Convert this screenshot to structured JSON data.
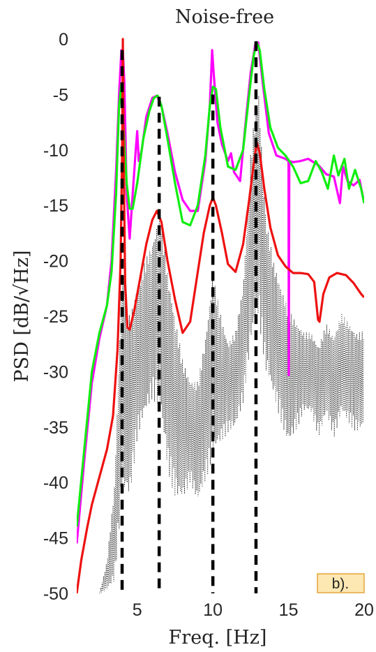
{
  "chart_data": {
    "type": "line",
    "title": "Noise-free",
    "xlabel": "Freq. [Hz]",
    "ylabel": "PSD [dB/√Hz]",
    "xlim": [
      1,
      20
    ],
    "ylim": [
      -50,
      0
    ],
    "xticks": [
      5,
      10,
      15,
      20
    ],
    "yticks": [
      0,
      -5,
      -10,
      -15,
      -20,
      -25,
      -30,
      -35,
      -40,
      -45,
      -50
    ],
    "grid": false,
    "annotation": "b).",
    "colors": {
      "magenta": "#ff00ff",
      "green": "#11ee11",
      "red": "#ee1111",
      "black": "#000000",
      "dotted": "#222222"
    },
    "series": [
      {
        "color": "magenta",
        "style": "solid",
        "x": [
          1.0,
          1.5,
          2.0,
          2.5,
          3.0,
          3.3,
          3.6,
          3.8,
          3.95,
          4.05,
          4.15,
          4.3,
          4.5,
          4.7,
          4.9,
          5.0,
          5.1,
          5.3,
          5.6,
          6.0,
          6.3,
          6.6,
          7.0,
          7.5,
          8.0,
          8.5,
          9.0,
          9.5,
          9.8,
          9.95,
          10.05,
          10.3,
          10.6,
          11.0,
          11.2,
          11.4,
          11.8,
          12.2,
          12.5,
          12.8,
          13.0,
          13.3,
          13.7,
          14.2,
          14.8,
          15.0,
          15.02,
          15.05,
          15.3,
          15.8,
          16.3,
          17.0,
          17.5,
          18.0,
          18.4,
          18.6,
          18.9,
          19.3,
          19.7,
          20.0
        ],
        "y": [
          -45.5,
          -38,
          -31,
          -27,
          -24,
          -20,
          -12,
          -5,
          -1,
          -1,
          -4,
          -14,
          -18,
          -14,
          -10,
          -8.3,
          -11,
          -10,
          -7,
          -5.3,
          -5.1,
          -6,
          -8.5,
          -12,
          -14.5,
          -15.5,
          -15.5,
          -11,
          -6,
          -1,
          -3,
          -7.5,
          -9.5,
          -11,
          -10.3,
          -12,
          -12.8,
          -7,
          -3,
          -0.5,
          -0.3,
          -4,
          -8.5,
          -10.5,
          -10.8,
          -11,
          -30.3,
          -11,
          -11.1,
          -11,
          -10.8,
          -11.4,
          -12.2,
          -12.4,
          -14.8,
          -11.5,
          -12.8,
          -13.2,
          -12.7,
          -14.8
        ]
      },
      {
        "color": "green",
        "style": "solid",
        "x": [
          1.0,
          1.5,
          2.0,
          2.5,
          3.0,
          3.3,
          3.6,
          3.8,
          3.95,
          4.1,
          4.3,
          4.5,
          4.7,
          5.0,
          5.4,
          5.8,
          6.1,
          6.35,
          6.6,
          7.0,
          7.5,
          8.0,
          8.5,
          9.0,
          9.5,
          9.8,
          10.0,
          10.2,
          10.5,
          11.0,
          11.5,
          12.0,
          12.4,
          12.7,
          12.9,
          13.1,
          13.4,
          13.8,
          14.3,
          14.8,
          15.3,
          15.8,
          16.3,
          16.8,
          17.2,
          17.6,
          18.0,
          18.3,
          18.7,
          19.0,
          19.4,
          19.8,
          20.0
        ],
        "y": [
          -44,
          -37,
          -30,
          -26.5,
          -24,
          -21,
          -14,
          -6,
          -4,
          -8,
          -13,
          -15.3,
          -15.3,
          -13,
          -9,
          -6.5,
          -5.3,
          -5.1,
          -6,
          -9,
          -13,
          -16.5,
          -16.8,
          -15,
          -10.5,
          -6,
          -4.3,
          -4.5,
          -8,
          -11.5,
          -11.8,
          -10,
          -5,
          -1.5,
          -0.3,
          -1,
          -4.5,
          -8,
          -9.8,
          -10.5,
          -11.5,
          -13,
          -12.8,
          -11,
          -12,
          -13.5,
          -10.5,
          -12.3,
          -10.8,
          -13.5,
          -11.8,
          -13.5,
          -14.8
        ]
      },
      {
        "color": "red",
        "style": "solid",
        "x": [
          1.0,
          1.3,
          1.7,
          2.0,
          2.5,
          3.0,
          3.4,
          3.7,
          3.9,
          4.0,
          4.05,
          4.1,
          4.2,
          4.35,
          4.5,
          4.8,
          5.2,
          5.6,
          6.0,
          6.3,
          6.6,
          7.0,
          7.5,
          8.0,
          8.5,
          9.0,
          9.4,
          9.8,
          10.0,
          10.2,
          10.6,
          11.0,
          11.5,
          12.0,
          12.4,
          12.7,
          12.9,
          13.1,
          13.4,
          13.8,
          14.3,
          14.8,
          15.3,
          15.8,
          16.3,
          16.7,
          16.95,
          17.05,
          17.3,
          17.7,
          18.2,
          18.8,
          19.3,
          19.8,
          20.0
        ],
        "y": [
          -50,
          -47,
          -44,
          -42,
          -39.5,
          -37,
          -34,
          -28,
          -20,
          -10,
          0,
          -10,
          -22,
          -26,
          -26.2,
          -24.5,
          -21.5,
          -18.5,
          -16.3,
          -15.5,
          -16.5,
          -20,
          -23.5,
          -26.5,
          -25.5,
          -21,
          -17.5,
          -15,
          -14.3,
          -15,
          -17.5,
          -20.3,
          -21,
          -18.5,
          -14.5,
          -11.3,
          -9.3,
          -10.3,
          -13.5,
          -17,
          -19.5,
          -20.5,
          -21.1,
          -21.1,
          -21.2,
          -21.9,
          -25.3,
          -25.5,
          -23,
          -21.5,
          -21.1,
          -21.3,
          -22,
          -23,
          -23.3
        ]
      }
    ],
    "vlines": [
      4.0,
      6.45,
      10.0,
      12.85
    ],
    "vline_tops": [
      -1,
      -5.2,
      -5,
      -0.2
    ],
    "dotted_envelope": {
      "x": [
        2.5,
        3.0,
        3.5,
        4.0,
        4.5,
        5.0,
        5.5,
        6.0,
        6.5,
        7.0,
        7.5,
        8.0,
        8.5,
        9.0,
        9.5,
        10.0,
        10.5,
        11.0,
        11.5,
        12.0,
        12.5,
        13.0,
        13.5,
        14.0,
        14.5,
        15.0,
        15.5,
        16.0,
        16.5,
        17.0,
        17.5,
        18.0,
        18.5,
        19.0,
        19.5,
        20.0
      ],
      "high": [
        -50,
        -47,
        -40,
        -20,
        -25,
        -22,
        -20,
        -18,
        -15,
        -20,
        -24,
        -28,
        -30,
        -30,
        -26,
        -20,
        -24,
        -27,
        -26,
        -22,
        -10,
        -4,
        -16,
        -20,
        -22,
        -24,
        -25,
        -26,
        -26,
        -27,
        -25,
        -26,
        -24,
        -25,
        -26,
        -26
      ],
      "low": [
        -50,
        -50,
        -50,
        -44,
        -44,
        -38,
        -36,
        -34,
        -35,
        -40,
        -42,
        -42,
        -40,
        -42,
        -40,
        -38,
        -37,
        -36,
        -36,
        -34,
        -30,
        -28,
        -32,
        -34,
        -36,
        -38,
        -36,
        -34,
        -34,
        -36,
        -34,
        -36,
        -34,
        -35,
        -36,
        -36
      ]
    }
  }
}
